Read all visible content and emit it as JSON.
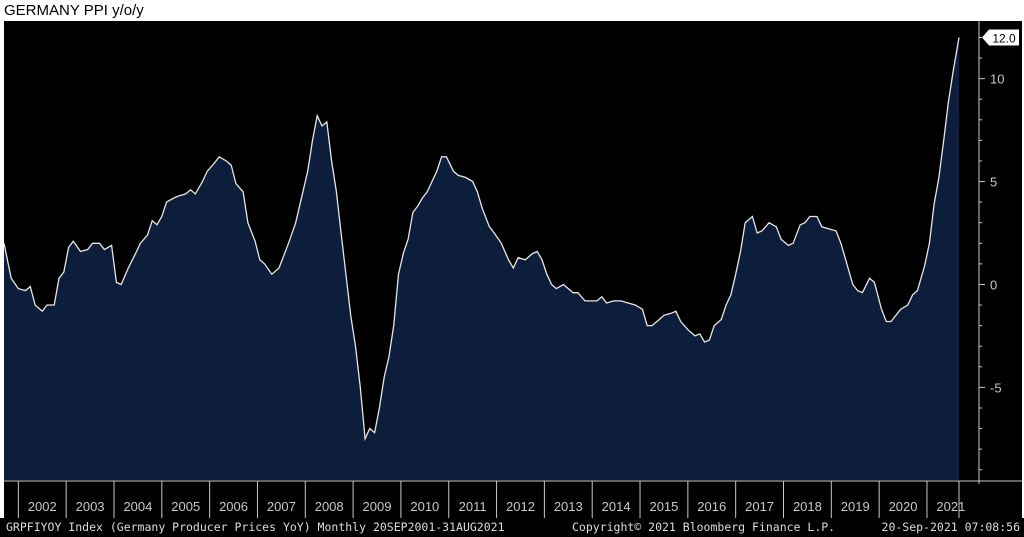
{
  "title": "GERMANY PPI y/o/y",
  "footer": {
    "left": "GRPFIYOY Index (Germany Producer Prices YoY)  Monthly 20SEP2001-31AUG2021",
    "middle": "Copyright© 2021 Bloomberg Finance L.P.",
    "right": "20-Sep-2021 07:08:56"
  },
  "colors": {
    "background": "#000000",
    "area_fill": "#0c1e3c",
    "line": "#e6e6e6",
    "axis": "#c8c8c8",
    "label_box": "#ffffff"
  },
  "chart_data": {
    "type": "area",
    "title": "GERMANY PPI y/o/y",
    "xlabel": "",
    "ylabel": "",
    "xlim": [
      2001.7,
      2021.67
    ],
    "ylim": [
      -9.5,
      12.8
    ],
    "yticks": [
      10,
      5,
      0,
      -5
    ],
    "ytick_labels": [
      "10",
      "5",
      "0",
      "-5"
    ],
    "year_labels": [
      "2002",
      "2003",
      "2004",
      "2005",
      "2006",
      "2007",
      "2008",
      "2009",
      "2010",
      "2011",
      "2012",
      "2013",
      "2014",
      "2015",
      "2016",
      "2017",
      "2018",
      "2019",
      "2020",
      "2021"
    ],
    "last_value_label": "12.0",
    "y_axis_position": "right",
    "grid": false,
    "series": [
      {
        "points": [
          [
            2001.7,
            2.0
          ],
          [
            2001.85,
            0.3
          ],
          [
            2002.0,
            -0.2
          ],
          [
            2002.15,
            -0.3
          ],
          [
            2002.25,
            -0.1
          ],
          [
            2002.35,
            -1.0
          ],
          [
            2002.5,
            -1.3
          ],
          [
            2002.6,
            -1.0
          ],
          [
            2002.75,
            -1.0
          ],
          [
            2002.85,
            0.3
          ],
          [
            2002.95,
            0.6
          ],
          [
            2003.05,
            1.8
          ],
          [
            2003.15,
            2.1
          ],
          [
            2003.3,
            1.6
          ],
          [
            2003.45,
            1.7
          ],
          [
            2003.55,
            2.0
          ],
          [
            2003.7,
            2.0
          ],
          [
            2003.8,
            1.7
          ],
          [
            2003.95,
            1.9
          ],
          [
            2004.05,
            0.1
          ],
          [
            2004.15,
            0.0
          ],
          [
            2004.3,
            0.8
          ],
          [
            2004.45,
            1.5
          ],
          [
            2004.55,
            2.0
          ],
          [
            2004.7,
            2.4
          ],
          [
            2004.8,
            3.1
          ],
          [
            2004.9,
            2.9
          ],
          [
            2005.0,
            3.3
          ],
          [
            2005.1,
            4.0
          ],
          [
            2005.25,
            4.2
          ],
          [
            2005.35,
            4.3
          ],
          [
            2005.5,
            4.4
          ],
          [
            2005.6,
            4.6
          ],
          [
            2005.7,
            4.4
          ],
          [
            2005.85,
            5.0
          ],
          [
            2005.95,
            5.5
          ],
          [
            2006.1,
            5.9
          ],
          [
            2006.2,
            6.2
          ],
          [
            2006.35,
            6.0
          ],
          [
            2006.45,
            5.8
          ],
          [
            2006.55,
            4.9
          ],
          [
            2006.7,
            4.5
          ],
          [
            2006.8,
            3.0
          ],
          [
            2006.95,
            2.1
          ],
          [
            2007.05,
            1.2
          ],
          [
            2007.15,
            1.0
          ],
          [
            2007.3,
            0.5
          ],
          [
            2007.45,
            0.8
          ],
          [
            2007.55,
            1.4
          ],
          [
            2007.65,
            2.0
          ],
          [
            2007.8,
            3.0
          ],
          [
            2007.95,
            4.5
          ],
          [
            2008.05,
            5.5
          ],
          [
            2008.15,
            7.0
          ],
          [
            2008.25,
            8.2
          ],
          [
            2008.35,
            7.7
          ],
          [
            2008.45,
            7.9
          ],
          [
            2008.55,
            6.0
          ],
          [
            2008.65,
            4.5
          ],
          [
            2008.75,
            2.5
          ],
          [
            2008.85,
            0.5
          ],
          [
            2008.95,
            -1.5
          ],
          [
            2009.05,
            -3.0
          ],
          [
            2009.15,
            -5.0
          ],
          [
            2009.25,
            -7.5
          ],
          [
            2009.35,
            -7.0
          ],
          [
            2009.45,
            -7.2
          ],
          [
            2009.55,
            -6.0
          ],
          [
            2009.65,
            -4.5
          ],
          [
            2009.75,
            -3.5
          ],
          [
            2009.85,
            -2.0
          ],
          [
            2009.95,
            0.5
          ],
          [
            2010.05,
            1.5
          ],
          [
            2010.15,
            2.2
          ],
          [
            2010.25,
            3.5
          ],
          [
            2010.35,
            3.8
          ],
          [
            2010.45,
            4.2
          ],
          [
            2010.55,
            4.5
          ],
          [
            2010.65,
            5.0
          ],
          [
            2010.75,
            5.5
          ],
          [
            2010.85,
            6.2
          ],
          [
            2010.95,
            6.2
          ],
          [
            2011.1,
            5.5
          ],
          [
            2011.2,
            5.3
          ],
          [
            2011.35,
            5.2
          ],
          [
            2011.5,
            5.0
          ],
          [
            2011.6,
            4.5
          ],
          [
            2011.7,
            3.7
          ],
          [
            2011.85,
            2.8
          ],
          [
            2011.95,
            2.5
          ],
          [
            2012.1,
            2.0
          ],
          [
            2012.25,
            1.2
          ],
          [
            2012.35,
            0.8
          ],
          [
            2012.45,
            1.3
          ],
          [
            2012.6,
            1.2
          ],
          [
            2012.75,
            1.5
          ],
          [
            2012.85,
            1.6
          ],
          [
            2012.95,
            1.2
          ],
          [
            2013.05,
            0.5
          ],
          [
            2013.15,
            0.0
          ],
          [
            2013.25,
            -0.2
          ],
          [
            2013.4,
            0.0
          ],
          [
            2013.5,
            -0.2
          ],
          [
            2013.6,
            -0.4
          ],
          [
            2013.7,
            -0.4
          ],
          [
            2013.85,
            -0.8
          ],
          [
            2013.95,
            -0.8
          ],
          [
            2014.1,
            -0.8
          ],
          [
            2014.2,
            -0.6
          ],
          [
            2014.3,
            -0.9
          ],
          [
            2014.45,
            -0.8
          ],
          [
            2014.6,
            -0.8
          ],
          [
            2014.75,
            -0.9
          ],
          [
            2014.9,
            -1.0
          ],
          [
            2015.05,
            -1.2
          ],
          [
            2015.15,
            -2.0
          ],
          [
            2015.25,
            -2.0
          ],
          [
            2015.4,
            -1.7
          ],
          [
            2015.5,
            -1.5
          ],
          [
            2015.65,
            -1.4
          ],
          [
            2015.75,
            -1.3
          ],
          [
            2015.85,
            -1.8
          ],
          [
            2016.0,
            -2.2
          ],
          [
            2016.15,
            -2.5
          ],
          [
            2016.25,
            -2.4
          ],
          [
            2016.35,
            -2.8
          ],
          [
            2016.45,
            -2.7
          ],
          [
            2016.55,
            -2.0
          ],
          [
            2016.7,
            -1.7
          ],
          [
            2016.8,
            -1.0
          ],
          [
            2016.9,
            -0.5
          ],
          [
            2017.0,
            0.5
          ],
          [
            2017.1,
            1.6
          ],
          [
            2017.2,
            3.0
          ],
          [
            2017.35,
            3.3
          ],
          [
            2017.45,
            2.5
          ],
          [
            2017.55,
            2.6
          ],
          [
            2017.7,
            3.0
          ],
          [
            2017.85,
            2.8
          ],
          [
            2017.95,
            2.2
          ],
          [
            2018.1,
            1.9
          ],
          [
            2018.2,
            2.0
          ],
          [
            2018.35,
            2.9
          ],
          [
            2018.45,
            3.0
          ],
          [
            2018.55,
            3.3
          ],
          [
            2018.7,
            3.3
          ],
          [
            2018.8,
            2.8
          ],
          [
            2018.95,
            2.7
          ],
          [
            2019.1,
            2.6
          ],
          [
            2019.2,
            2.0
          ],
          [
            2019.3,
            1.2
          ],
          [
            2019.45,
            0.0
          ],
          [
            2019.55,
            -0.3
          ],
          [
            2019.65,
            -0.4
          ],
          [
            2019.8,
            0.3
          ],
          [
            2019.9,
            0.1
          ],
          [
            2020.05,
            -1.2
          ],
          [
            2020.15,
            -1.8
          ],
          [
            2020.25,
            -1.8
          ],
          [
            2020.35,
            -1.5
          ],
          [
            2020.45,
            -1.2
          ],
          [
            2020.6,
            -1.0
          ],
          [
            2020.7,
            -0.5
          ],
          [
            2020.8,
            -0.3
          ],
          [
            2020.95,
            0.9
          ],
          [
            2021.05,
            2.0
          ],
          [
            2021.15,
            3.9
          ],
          [
            2021.25,
            5.2
          ],
          [
            2021.35,
            7.0
          ],
          [
            2021.45,
            8.9
          ],
          [
            2021.55,
            10.4
          ],
          [
            2021.67,
            12.0
          ]
        ]
      }
    ]
  }
}
